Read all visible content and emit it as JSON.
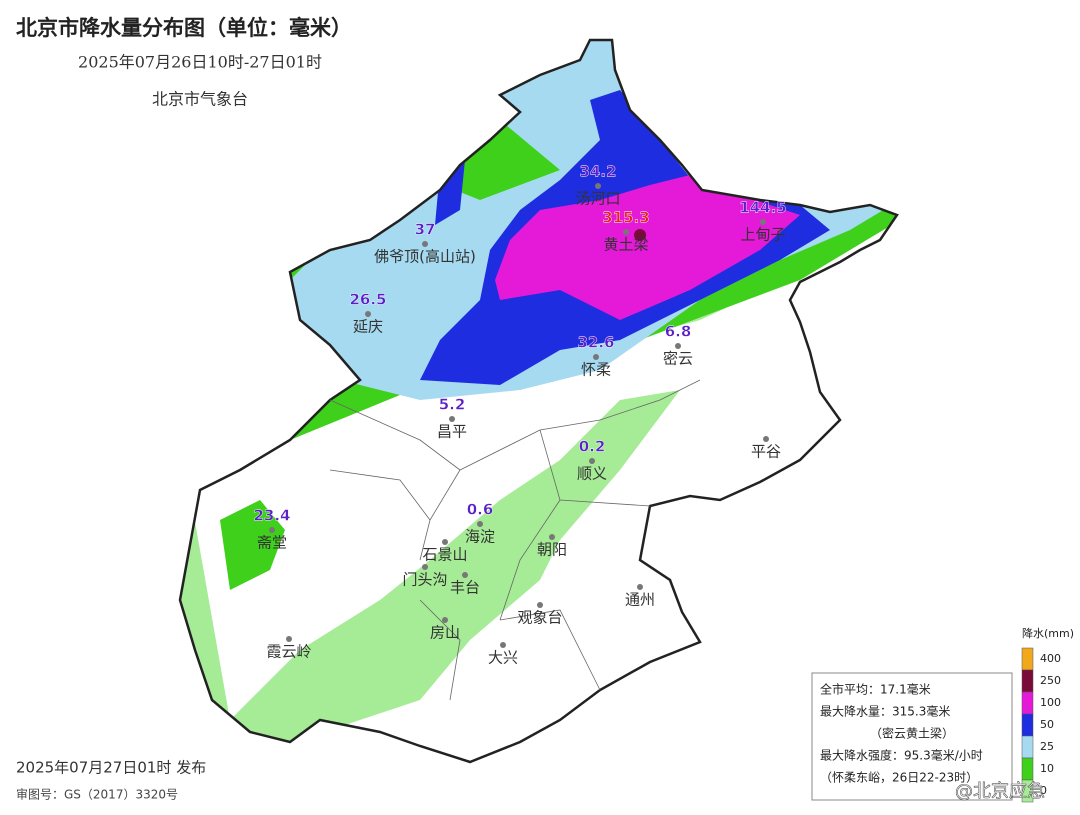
{
  "header": {
    "title": "北京市降水量分布图（单位：毫米）",
    "subtitle": "2025年07月26日10时-27日01时",
    "agency": "北京市气象台"
  },
  "stations": [
    {
      "value": 34.2,
      "name": "汤河口",
      "color": "#5a1fc8"
    },
    {
      "value": 315.3,
      "name": "黄土梁",
      "color": "#e8202a"
    },
    {
      "value": 144.5,
      "name": "上甸子",
      "color": "#5a1fc8"
    },
    {
      "value": 37,
      "name": "佛爷顶(高山站)",
      "color": "#5a1fc8"
    },
    {
      "value": 26.5,
      "name": "延庆",
      "color": "#5a1fc8"
    },
    {
      "value": 32.6,
      "name": "怀柔",
      "color": "#5a1fc8"
    },
    {
      "value": 6.8,
      "name": "密云",
      "color": "#5a1fc8"
    },
    {
      "value": 5.2,
      "name": "昌平",
      "color": "#5a1fc8"
    },
    {
      "value": 0.2,
      "name": "顺义",
      "color": "#5a1fc8"
    },
    {
      "value": 0.6,
      "name": "海淀",
      "color": "#5a1fc8"
    },
    {
      "value": 23.4,
      "name": "斋堂",
      "color": "#5a1fc8"
    }
  ],
  "places": [
    "平谷",
    "朝阳",
    "石景山",
    "门头沟",
    "丰台",
    "通州",
    "观象台",
    "房山",
    "大兴",
    "霞云岭"
  ],
  "legend": {
    "title": "降水(mm)",
    "levels": [
      {
        "value": 400,
        "color": "#f2a81d"
      },
      {
        "value": 250,
        "color": "#7a0a3a"
      },
      {
        "value": 100,
        "color": "#e41ad8"
      },
      {
        "value": 50,
        "color": "#1f2de0"
      },
      {
        "value": 25,
        "color": "#a6daf0"
      },
      {
        "value": 10,
        "color": "#3fd01c"
      },
      {
        "value": 0,
        "color": "#a6eb96"
      }
    ]
  },
  "info": [
    "全市平均：17.1毫米",
    "最大降水量：315.3毫米",
    "（密云黄土梁）",
    "最大降水强度：95.3毫米/小时",
    "（怀柔东峪，26日22-23时）"
  ],
  "footer": {
    "release": "2025年07月27日01时 发布",
    "approval": "审图号：GS（2017）3320号"
  },
  "watermark": "@北京应急"
}
